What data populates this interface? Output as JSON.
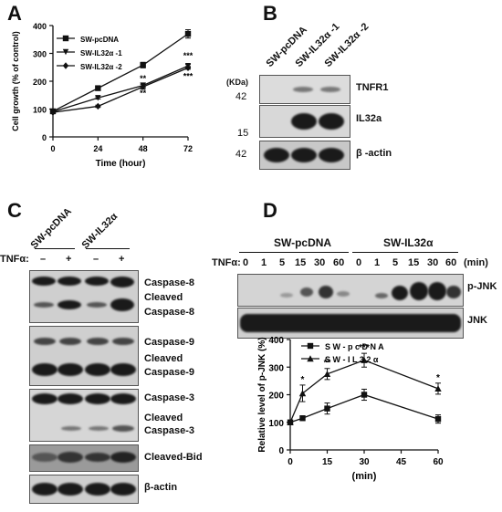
{
  "panels": {
    "a": {
      "letter": "A"
    },
    "b": {
      "letter": "B"
    },
    "c": {
      "letter": "C"
    },
    "d": {
      "letter": "D"
    }
  },
  "panel_b": {
    "kda_label": "(KDa)",
    "lanes": [
      "SW-pcDNA",
      "SW-IL32α -1",
      "SW-IL32α -2"
    ],
    "markers": [
      "42",
      "15",
      "42"
    ],
    "blots": [
      "TNFR1",
      "IL32a",
      "β -actin"
    ]
  },
  "panel_c": {
    "groups": [
      "SW-pcDNA",
      "SW-IL32α"
    ],
    "tnf_label": "TNFα:",
    "tnf_signs": [
      "–",
      "+",
      "–",
      "+"
    ],
    "blots": [
      [
        "Caspase-8",
        "Cleaved",
        "Caspase-8"
      ],
      [
        "Caspase-9",
        "Cleaved",
        "Caspase-9"
      ],
      [
        "Caspase-3",
        "Cleaved",
        "Caspase-3"
      ],
      [
        "Cleaved-Bid"
      ],
      [
        "β-actin"
      ]
    ]
  },
  "panel_d_top": {
    "groups": [
      "SW-pcDNA",
      "SW-IL32α"
    ],
    "tnf_label": "TNFα:",
    "times": [
      "0",
      "1",
      "5",
      "15",
      "30",
      "60",
      "0",
      "1",
      "5",
      "15",
      "30",
      "60"
    ],
    "unit": "(min)",
    "blots": [
      "p-JNK",
      "JNK"
    ]
  },
  "chart_data": [
    {
      "type": "line",
      "xlabel": "Time (hour)",
      "ylabel": "Cell growth (% of control)",
      "x": [
        0,
        24,
        48,
        72
      ],
      "xlim": [
        0,
        72
      ],
      "ylim": [
        0,
        400
      ],
      "xticks": [
        "0",
        "24",
        "48",
        "72"
      ],
      "yticks": [
        "0",
        "100",
        "200",
        "300",
        "400"
      ],
      "legend_position": "top-left",
      "series": [
        {
          "name": "SW-pcDNA",
          "marker": "square",
          "values": [
            92,
            175,
            258,
            370
          ],
          "errors": [
            3,
            5,
            10,
            15
          ]
        },
        {
          "name": "SW-IL32α -1",
          "marker": "triangle-down",
          "values": [
            90,
            140,
            185,
            255
          ],
          "errors": [
            3,
            4,
            8,
            5
          ]
        },
        {
          "name": "SW-IL32α -2",
          "marker": "diamond",
          "values": [
            88,
            110,
            180,
            248
          ],
          "errors": [
            3,
            4,
            8,
            5
          ]
        }
      ],
      "annotations": [
        {
          "x": 48,
          "y": 200,
          "text": "**"
        },
        {
          "x": 48,
          "y": 148,
          "text": "**"
        },
        {
          "x": 72,
          "y": 282,
          "text": "***"
        },
        {
          "x": 72,
          "y": 208,
          "text": "***"
        }
      ]
    },
    {
      "type": "line",
      "xlabel": "(min)",
      "ylabel": "Relative level of p-JNK (%)",
      "x": [
        0,
        5,
        15,
        30,
        60
      ],
      "xlim": [
        0,
        60
      ],
      "ylim": [
        0,
        400
      ],
      "xticks": [
        "0",
        "15",
        "30",
        "45",
        "60"
      ],
      "yticks": [
        "0",
        "100",
        "200",
        "300",
        "400"
      ],
      "legend_position": "top-left",
      "series": [
        {
          "name": "S W - p c D N A",
          "marker": "square",
          "values": [
            100,
            115,
            150,
            200,
            112
          ],
          "errors": [
            5,
            8,
            20,
            20,
            15
          ]
        },
        {
          "name": "S W - I L 3 2 α",
          "marker": "triangle-up",
          "values": [
            100,
            205,
            275,
            325,
            222
          ],
          "errors": [
            5,
            30,
            20,
            25,
            20
          ]
        }
      ],
      "annotations": [
        {
          "x": 5,
          "y": 245,
          "text": "*"
        },
        {
          "x": 15,
          "y": 305,
          "text": "**"
        },
        {
          "x": 30,
          "y": 360,
          "text": "***"
        },
        {
          "x": 60,
          "y": 252,
          "text": "*"
        }
      ]
    }
  ]
}
